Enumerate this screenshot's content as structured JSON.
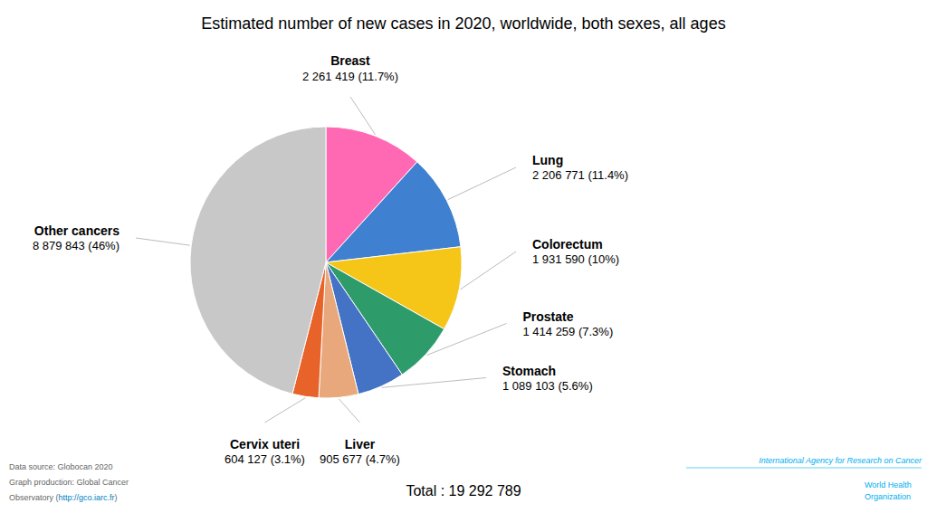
{
  "chart_data": {
    "type": "pie",
    "title": "Estimated number of new cases in 2020, worldwide, both sexes, all ages",
    "categories": [
      "Breast",
      "Lung",
      "Colorectum",
      "Prostate",
      "Stomach",
      "Liver",
      "Cervix uteri",
      "Other cancers"
    ],
    "values": [
      2261419,
      2206771,
      1931590,
      1414259,
      1089103,
      905677,
      604127,
      8879843
    ],
    "value_labels": [
      "2 261 419 (11.7%)",
      "2 206 771 (11.4%)",
      "1 931 590 (10%)",
      "1 414 259 (7.3%)",
      "1 089 103 (5.6%)",
      "905 677 (4.7%)",
      "604 127 (3.1%)",
      "8 879 843 (46%)"
    ],
    "colors": [
      "#FF69B4",
      "#4080D0",
      "#F5C518",
      "#2E9B6B",
      "#4472C4",
      "#E8A87C",
      "#E8632A",
      "#C8C8C8"
    ],
    "data_labels": true,
    "annotations": [
      "Total : 19 292 789",
      "Data source: Globocan 2020",
      "Graph production: Global Cancer",
      "Observatory (",
      "http://gco.iarc.fr",
      ")",
      "International Agency for Research on Cancer",
      "World Health",
      "Organization"
    ]
  }
}
